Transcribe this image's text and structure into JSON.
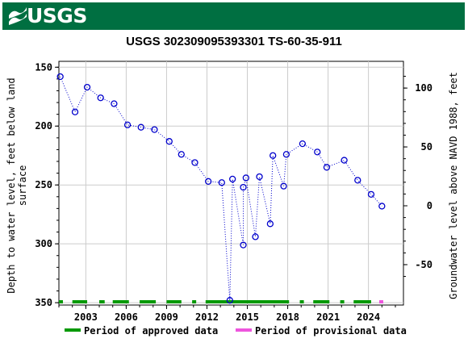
{
  "header": {
    "agency": "USGS",
    "logo_color": "#006f41"
  },
  "chart_data": {
    "type": "scatter",
    "title": "USGS 302309095393301 TS-60-35-911",
    "ylabel_left": "Depth to water level, feet below land surface",
    "ylabel_left_lines": [
      "Depth to water level, feet below land",
      "surface"
    ],
    "ylabel_right": "Groundwater level above NAVD 1988, feet",
    "y_left_range": [
      145,
      352
    ],
    "y_left_inverted": true,
    "y_left_ticks": [
      150,
      200,
      250,
      300,
      350
    ],
    "y_right_ticks": [
      100,
      50,
      0,
      -50
    ],
    "datum_offset": 267.7,
    "x_range": [
      2001.0,
      2026.6
    ],
    "x_ticks": [
      2003,
      2006,
      2009,
      2012,
      2015,
      2018,
      2021,
      2024
    ],
    "grid": true,
    "point_color": "#0000cc",
    "line_style": "dotted",
    "points": [
      [
        2001.1,
        158
      ],
      [
        2002.2,
        188
      ],
      [
        2003.1,
        167
      ],
      [
        2004.1,
        176
      ],
      [
        2005.1,
        181
      ],
      [
        2006.1,
        199
      ],
      [
        2007.1,
        201
      ],
      [
        2008.1,
        203
      ],
      [
        2009.2,
        213
      ],
      [
        2010.1,
        224
      ],
      [
        2011.1,
        231
      ],
      [
        2012.1,
        247
      ],
      [
        2013.1,
        248
      ],
      [
        2013.7,
        348
      ],
      [
        2013.9,
        245
      ],
      [
        2014.7,
        301
      ],
      [
        2014.7,
        252
      ],
      [
        2014.9,
        244
      ],
      [
        2015.6,
        294
      ],
      [
        2015.9,
        243
      ],
      [
        2016.7,
        283
      ],
      [
        2016.9,
        225
      ],
      [
        2017.7,
        251
      ],
      [
        2017.9,
        224
      ],
      [
        2019.1,
        215
      ],
      [
        2020.2,
        222
      ],
      [
        2020.9,
        235
      ],
      [
        2022.2,
        229
      ],
      [
        2023.2,
        246
      ],
      [
        2024.2,
        258
      ],
      [
        2025.0,
        268
      ]
    ],
    "approved_periods": [
      [
        2001.0,
        2001.3
      ],
      [
        2002.0,
        2003.1
      ],
      [
        2004.0,
        2004.4
      ],
      [
        2005.0,
        2006.2
      ],
      [
        2007.0,
        2008.2
      ],
      [
        2009.0,
        2010.1
      ],
      [
        2010.9,
        2011.2
      ],
      [
        2011.9,
        2018.1
      ],
      [
        2018.9,
        2019.2
      ],
      [
        2019.9,
        2021.1
      ],
      [
        2021.9,
        2022.2
      ],
      [
        2022.9,
        2024.2
      ]
    ],
    "provisional_periods": [
      [
        2024.8,
        2025.1
      ]
    ],
    "approved_color": "#009900",
    "provisional_color": "#ee55dd",
    "legend": {
      "approved_label": "Period of approved data",
      "provisional_label": "Period of provisional data"
    }
  }
}
